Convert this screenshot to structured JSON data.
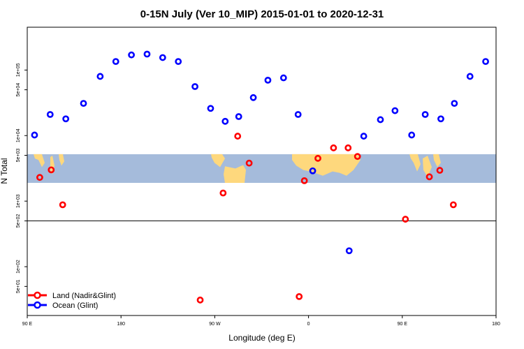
{
  "chart_data": {
    "type": "scatter",
    "title": "0-15N July (Ver 10_MIP)   2015-01-01 to 2020-12-31",
    "xlabel": "Longitude (deg E)",
    "ylabel": "N Total",
    "x_scale": "linear",
    "y_scale": "log",
    "xlim": [
      90,
      540
    ],
    "ylim": [
      18,
      450000
    ],
    "x_ticks": [
      {
        "value": 90,
        "label": "90 E"
      },
      {
        "value": 180,
        "label": "180"
      },
      {
        "value": 270,
        "label": "90 W"
      },
      {
        "value": 360,
        "label": "0"
      },
      {
        "value": 450,
        "label": "90 E"
      },
      {
        "value": 540,
        "label": "180"
      }
    ],
    "y_ticks": [
      {
        "value": 50,
        "label": "5e+01"
      },
      {
        "value": 100,
        "label": "1e+02"
      },
      {
        "value": 500,
        "label": "5e+02"
      },
      {
        "value": 1000,
        "label": "1e+03"
      },
      {
        "value": 5000,
        "label": "5e+03"
      },
      {
        "value": 10000,
        "label": "1e+04"
      },
      {
        "value": 50000,
        "label": "5e+04"
      },
      {
        "value": 100000,
        "label": "1e+05"
      }
    ],
    "reference_line_y": 500,
    "map_inset": {
      "ocean_color": "#a5bbdb",
      "land_color": "#fed87d",
      "y_range": [
        1900,
        5200
      ]
    },
    "legend": {
      "position": "bottom-left"
    },
    "series": [
      {
        "name": "Land (Nadir&Glint)",
        "color": "#ff0000",
        "points": [
          {
            "x": 102,
            "y": 2300
          },
          {
            "x": 113,
            "y": 3000
          },
          {
            "x": 124,
            "y": 880
          },
          {
            "x": 256,
            "y": 31
          },
          {
            "x": 278,
            "y": 1330
          },
          {
            "x": 292,
            "y": 9800
          },
          {
            "x": 303,
            "y": 3800
          },
          {
            "x": 351,
            "y": 35
          },
          {
            "x": 356,
            "y": 2050
          },
          {
            "x": 369,
            "y": 4500
          },
          {
            "x": 384,
            "y": 6500
          },
          {
            "x": 398,
            "y": 6500
          },
          {
            "x": 407,
            "y": 4800
          },
          {
            "x": 453,
            "y": 530
          },
          {
            "x": 476,
            "y": 2350
          },
          {
            "x": 486,
            "y": 2950
          },
          {
            "x": 499,
            "y": 880
          }
        ]
      },
      {
        "name": "Ocean (Glint)",
        "color": "#0000ff",
        "points": [
          {
            "x": 97,
            "y": 10200
          },
          {
            "x": 112,
            "y": 21000
          },
          {
            "x": 127,
            "y": 18000
          },
          {
            "x": 144,
            "y": 31000
          },
          {
            "x": 160,
            "y": 80000
          },
          {
            "x": 175,
            "y": 135000
          },
          {
            "x": 190,
            "y": 170000
          },
          {
            "x": 205,
            "y": 175000
          },
          {
            "x": 220,
            "y": 155000
          },
          {
            "x": 235,
            "y": 135000
          },
          {
            "x": 251,
            "y": 56000
          },
          {
            "x": 266,
            "y": 26000
          },
          {
            "x": 280,
            "y": 16500
          },
          {
            "x": 293,
            "y": 19500
          },
          {
            "x": 307,
            "y": 38000
          },
          {
            "x": 321,
            "y": 70000
          },
          {
            "x": 336,
            "y": 76000
          },
          {
            "x": 350,
            "y": 21000
          },
          {
            "x": 364,
            "y": 2900
          },
          {
            "x": 399,
            "y": 175
          },
          {
            "x": 413,
            "y": 9800
          },
          {
            "x": 429,
            "y": 17500
          },
          {
            "x": 443,
            "y": 24000
          },
          {
            "x": 459,
            "y": 10200
          },
          {
            "x": 472,
            "y": 21000
          },
          {
            "x": 487,
            "y": 18000
          },
          {
            "x": 500,
            "y": 31000
          },
          {
            "x": 515,
            "y": 80000
          },
          {
            "x": 530,
            "y": 135000
          }
        ]
      }
    ]
  }
}
